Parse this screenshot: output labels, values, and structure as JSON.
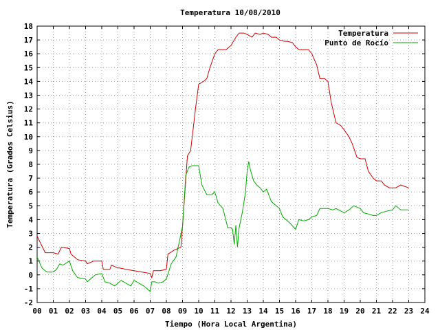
{
  "chart_data": {
    "type": "line",
    "title": "Temperatura 10/08/2010",
    "xlabel": "Tiempo (Hora Local Argentina)",
    "ylabel": "Temperatura (Grados Celsius)",
    "xlim": [
      0,
      24
    ],
    "ylim": [
      -2,
      18
    ],
    "x_tick_labels": [
      "00",
      "01",
      "02",
      "03",
      "04",
      "05",
      "06",
      "07",
      "08",
      "09",
      "10",
      "11",
      "12",
      "13",
      "14",
      "15",
      "16",
      "17",
      "18",
      "19",
      "20",
      "21",
      "22",
      "23",
      "24"
    ],
    "y_ticks": [
      -2,
      -1,
      0,
      1,
      2,
      3,
      4,
      5,
      6,
      7,
      8,
      9,
      10,
      11,
      12,
      13,
      14,
      15,
      16,
      17,
      18
    ],
    "grid": true,
    "legend_position": "top-right",
    "series": [
      {
        "name": "Temperatura",
        "color": "#cc0000",
        "x": [
          0,
          0.25,
          0.5,
          1,
          1.3,
          1.5,
          1.6,
          2,
          2.1,
          2.5,
          3,
          3.1,
          3.5,
          4,
          4.1,
          4.5,
          4.6,
          5,
          5.1,
          5.5,
          6,
          6.5,
          7,
          7.1,
          7.2,
          7.4,
          7.6,
          8,
          8.1,
          8.5,
          8.9,
          9,
          9.3,
          9.5,
          9.8,
          10,
          10.3,
          10.5,
          10.7,
          11,
          11.2,
          11.5,
          11.7,
          12,
          12.3,
          12.5,
          12.8,
          13,
          13.3,
          13.5,
          13.8,
          14,
          14.3,
          14.5,
          14.8,
          15,
          15.3,
          15.5,
          15.8,
          16,
          16.2,
          16.5,
          16.8,
          17,
          17.3,
          17.5,
          17.8,
          18,
          18.2,
          18.5,
          18.8,
          19,
          19.3,
          19.5,
          19.8,
          20,
          20.3,
          20.5,
          20.8,
          21,
          21.3,
          21.5,
          21.8,
          22,
          22.2,
          22.5,
          23
        ],
        "y": [
          2.8,
          2.2,
          1.6,
          1.6,
          1.5,
          2,
          2,
          1.9,
          1.5,
          1.1,
          1,
          0.8,
          1,
          1,
          0.4,
          0.4,
          0.7,
          0.5,
          0.5,
          0.4,
          0.3,
          0.2,
          0.1,
          -0.2,
          0.3,
          0.3,
          0.3,
          0.4,
          1.5,
          1.8,
          2,
          3.5,
          8.6,
          9,
          12,
          13.8,
          14,
          14.2,
          15,
          16,
          16.3,
          16.3,
          16.3,
          16.6,
          17.2,
          17.5,
          17.5,
          17.4,
          17.2,
          17.5,
          17.4,
          17.5,
          17.4,
          17.2,
          17.2,
          17,
          16.9,
          16.9,
          16.8,
          16.5,
          16.3,
          16.3,
          16.3,
          16,
          15.2,
          14.2,
          14.2,
          14,
          12.5,
          11,
          10.8,
          10.5,
          10,
          9.5,
          8.5,
          8.4,
          8.4,
          7.5,
          7,
          6.8,
          6.8,
          6.5,
          6.3,
          6.3,
          6.3,
          6.5,
          6.3
        ]
      },
      {
        "name": "Punto de Rocío",
        "color": "#00aa00",
        "x": [
          0,
          0.3,
          0.6,
          1,
          1.2,
          1.4,
          1.6,
          2,
          2.2,
          2.5,
          3,
          3.1,
          3.4,
          3.6,
          4,
          4.2,
          4.5,
          4.8,
          5,
          5.2,
          5.5,
          5.8,
          6,
          6.3,
          6.6,
          7,
          7.1,
          7.3,
          7.5,
          7.8,
          8,
          8.3,
          8.6,
          9,
          9.2,
          9.4,
          9.6,
          10,
          10.2,
          10.5,
          10.8,
          11,
          11.2,
          11.5,
          11.8,
          12,
          12.1,
          12.2,
          12.3,
          12.4,
          12.5,
          12.7,
          12.9,
          13,
          13.1,
          13.2,
          13.4,
          13.6,
          13.8,
          14,
          14.2,
          14.5,
          14.8,
          15,
          15.2,
          15.4,
          15.6,
          16,
          16.2,
          16.5,
          16.8,
          17,
          17.3,
          17.5,
          18,
          18.3,
          18.5,
          19,
          19.3,
          19.6,
          20,
          20.2,
          20.5,
          20.8,
          21,
          21.3,
          21.6,
          22,
          22.2,
          22.5,
          23
        ],
        "y": [
          1.3,
          0.5,
          0.2,
          0.2,
          0.4,
          0.8,
          0.7,
          1,
          0.3,
          -0.2,
          -0.3,
          -0.5,
          -0.2,
          0,
          0.1,
          -0.5,
          -0.6,
          -0.8,
          -0.6,
          -0.4,
          -0.6,
          -0.8,
          -0.4,
          -0.6,
          -0.8,
          -1.2,
          -0.5,
          -0.5,
          -0.6,
          -0.5,
          -0.3,
          0.8,
          1.3,
          3.5,
          7.2,
          7.8,
          7.9,
          7.9,
          6.5,
          5.8,
          5.8,
          6,
          5.2,
          4.8,
          3.4,
          3.4,
          3.3,
          2.2,
          3.6,
          2,
          3.4,
          4.5,
          6,
          7.5,
          8.2,
          7.6,
          6.8,
          6.5,
          6.3,
          6,
          6.2,
          5.3,
          5,
          4.8,
          4.2,
          4,
          3.8,
          3.3,
          4,
          3.9,
          4,
          4.2,
          4.3,
          4.8,
          4.8,
          4.7,
          4.8,
          4.5,
          4.7,
          5,
          4.8,
          4.5,
          4.4,
          4.3,
          4.3,
          4.5,
          4.6,
          4.7,
          5,
          4.7,
          4.7
        ]
      }
    ]
  }
}
